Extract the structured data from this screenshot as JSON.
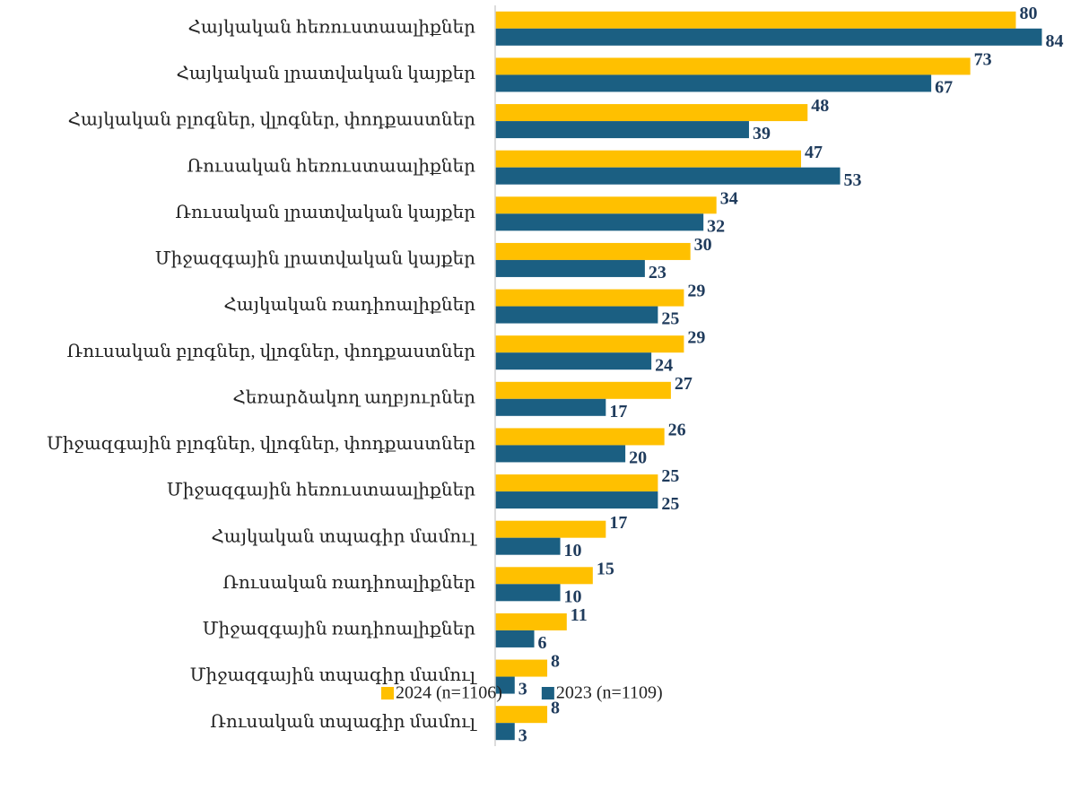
{
  "chart_data": {
    "type": "bar",
    "orientation": "horizontal",
    "categories": [
      "Հայկական հեռուստաալիքներ",
      "Հայկական լրատվական կայքեր",
      "Հայկական բլոգներ, վլոգներ, փոդքաստներ",
      "Ռուսական հեռուստաալիքներ",
      "Ռուսական լրատվական կայքեր",
      "Միջազգային լրատվական կայքեր",
      "Հայկական ռադիոալիքներ",
      "Ռուսական բլոգներ, վլոգներ, փոդքաստներ",
      "Հեռարձակող աղբյուրներ",
      "Միջազգային բլոգներ, վլոգներ, փոդքաստներ",
      "Միջազգային հեռուստաալիքներ",
      "Հայկական տպագիր մամուլ",
      "Ռուսական ռադիոալիքներ",
      "Միջազգային ռադիոալիքներ",
      "Միջազգային տպագիր մամուլ",
      "Ռուսական տպագիր մամուլ"
    ],
    "series": [
      {
        "name": "2024 (n=1106)",
        "color": "#ffc000",
        "values": [
          80,
          73,
          48,
          47,
          34,
          30,
          29,
          29,
          27,
          26,
          25,
          17,
          15,
          11,
          8,
          8
        ]
      },
      {
        "name": "2023 (n=1109)",
        "color": "#1b5f82",
        "values": [
          84,
          67,
          39,
          53,
          32,
          23,
          25,
          24,
          17,
          20,
          25,
          10,
          10,
          6,
          3,
          3
        ]
      }
    ],
    "xlim": [
      0,
      90
    ],
    "legend": "bottom"
  }
}
